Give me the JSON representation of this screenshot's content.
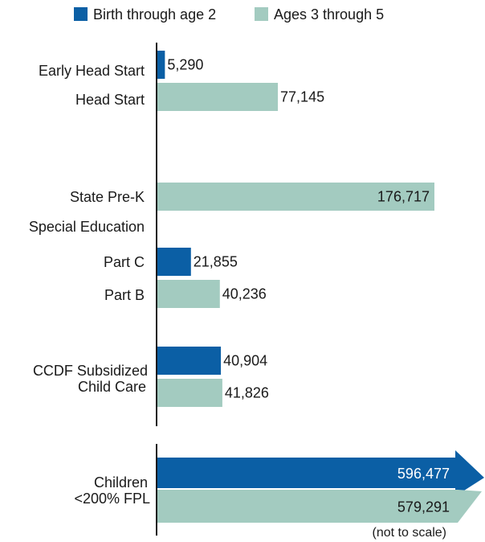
{
  "chart_data": {
    "type": "bar",
    "orientation": "horizontal",
    "title": "",
    "legend": {
      "placement": "top",
      "entries": [
        {
          "name": "Birth through age 2",
          "color": "#0b5fa5"
        },
        {
          "name": "Ages 3 through 5",
          "color": "#a3cbc0"
        }
      ]
    },
    "categories": [
      "Early Head Start",
      "Head Start",
      "State Pre-K",
      "Special Education",
      "Part C",
      "Part B",
      "CCDF Subsidized Child Care",
      "Children <200% FPL"
    ],
    "bars": [
      {
        "category": "Early Head Start",
        "series": "Birth through age 2",
        "value": 5290,
        "label": "5,290"
      },
      {
        "category": "Head Start",
        "series": "Ages 3 through 5",
        "value": 77145,
        "label": "77,145"
      },
      {
        "category": "State Pre-K",
        "series": "Ages 3 through 5",
        "value": 176717,
        "label": "176,717"
      },
      {
        "category": "Part C",
        "series": "Birth through age 2",
        "value": 21855,
        "label": "21,855"
      },
      {
        "category": "Part B",
        "series": "Ages 3 through 5",
        "value": 40236,
        "label": "40,236"
      },
      {
        "category": "CCDF Subsidized Child Care",
        "series": "Birth through age 2",
        "value": 40904,
        "label": "40,904"
      },
      {
        "category": "CCDF Subsidized Child Care",
        "series": "Ages 3 through 5",
        "value": 41826,
        "label": "41,826"
      }
    ],
    "reference": {
      "category": "Children <200% FPL",
      "lines": [
        "Children",
        "<200% FPL"
      ],
      "bars": [
        {
          "series": "Birth through age 2",
          "value": 596477,
          "label": "596,477"
        },
        {
          "series": "Ages 3 through 5",
          "value": 579291,
          "label": "579,291"
        }
      ],
      "note": "(not to scale)"
    },
    "xlim": [
      0,
      180000
    ],
    "grid": false
  }
}
